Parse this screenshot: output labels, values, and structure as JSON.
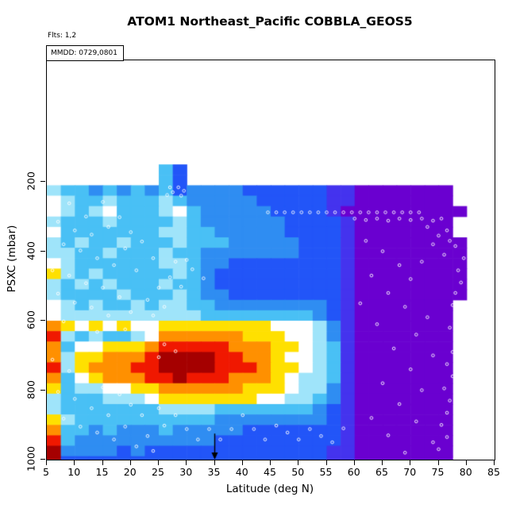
{
  "title": "ATOM1 Northeast_Pacific COBBLA_GEOS5",
  "subtitle": "Flts: 1,2",
  "legend_box": "MMDD: 0729,0801",
  "x_axis": {
    "label": "Latitude (deg N)",
    "ticks": [
      5,
      10,
      15,
      20,
      25,
      30,
      35,
      40,
      45,
      50,
      55,
      60,
      65,
      70,
      75,
      80,
      85
    ]
  },
  "y_axis": {
    "label": "PSXC (mbar)",
    "ticks": [
      200,
      400,
      600,
      800,
      1000
    ],
    "reversed": true
  },
  "chart_data": {
    "type": "heatmap",
    "title": "ATOM1 Northeast_Pacific COBBLA_GEOS5",
    "xlabel": "Latitude (deg N)",
    "ylabel": "PSXC (mbar)",
    "flights": "1,2",
    "dates_mmdd": [
      "0729",
      "0801"
    ],
    "x_range": [
      5,
      85
    ],
    "x_ticks": [
      5,
      10,
      15,
      20,
      25,
      30,
      35,
      40,
      45,
      50,
      55,
      60,
      65,
      70,
      75,
      80,
      85
    ],
    "y_ticks": [
      200,
      400,
      600,
      800,
      1000
    ],
    "y_reversed": true,
    "grid": {
      "lat_start": 5,
      "lat_step": 2.5,
      "pressure_start": 150,
      "pressure_step": 30,
      "note": "cell codes 0 (lowest) to A (highest), '.' = no data; values estimated from color",
      "code_values": {
        "0": 0.0,
        "1": 0.1,
        "2": 0.2,
        "3": 0.33,
        "4": 0.45,
        "5": 0.55,
        "6": 0.63,
        "7": 0.73,
        "8": 0.83,
        "9": 0.93,
        "A": 1.0
      },
      "palette": {
        "0": "#6a00d0",
        "1": "#4433ee",
        "2": "#2255f8",
        "3": "#2f8df2",
        "4": "#49c0f5",
        "5": "#9fe4fa",
        "6": "#ffffff",
        "7": "#ffe000",
        "8": "#ff9000",
        "9": "#f01800",
        "A": "#a50000"
      },
      "rows": [
        "........42....................",
        "........42....................",
        "54434343423333222222110000000.",
        "65445444543333322222110000000.",
        "654564445643333322221000000000",
        "54445444454333333222210000000.",
        "64444444554433333222210000000.",
        "545445444544433333222100000000",
        "554454445443333333222100000000",
        "654444445543322222222100000000",
        "754544444543222222222100000000",
        "545454445443222222222100000000",
        "544445444543322222222100000000",
        "65454454554433333333210000000.",
        "65555555555444444443210000000.",
        "87676766777777776665310000000.",
        "95454456888888777665310000000.",
        "84667778999998887765410000000.",
        "85778889AAAA99887665410000000.",
        "95788899AAAA99987765410000000.",
        "846788899A9998887655410000000.",
        "74556677888888777655310000000.",
        "54445556777777766554310000000.",
        "54444444555544444443210000000.",
        "75444444444433333333210000000.",
        "84434333433333222222210000000.",
        "94333333333322222222210000000.",
        "A3333232222222222222110000000.",
        "A2222222222222222222110000000."
      ]
    },
    "sample_points": [
      [
        27,
        216
      ],
      [
        28.5,
        216
      ],
      [
        29.5,
        226
      ],
      [
        27.5,
        230
      ],
      [
        26.5,
        238
      ],
      [
        29,
        240
      ],
      [
        44.5,
        288
      ],
      [
        46,
        288
      ],
      [
        47.5,
        288
      ],
      [
        49,
        288
      ],
      [
        50.5,
        288
      ],
      [
        52,
        288
      ],
      [
        53.5,
        288
      ],
      [
        55,
        288
      ],
      [
        56.5,
        288
      ],
      [
        58,
        288
      ],
      [
        59.5,
        288
      ],
      [
        61,
        288
      ],
      [
        62.5,
        288
      ],
      [
        64,
        288
      ],
      [
        65.5,
        288
      ],
      [
        67,
        288
      ],
      [
        68.5,
        288
      ],
      [
        70,
        288
      ],
      [
        71.5,
        288
      ],
      [
        60,
        306
      ],
      [
        62,
        310
      ],
      [
        64,
        306
      ],
      [
        66,
        312
      ],
      [
        68,
        306
      ],
      [
        70,
        310
      ],
      [
        72,
        306
      ],
      [
        74,
        312
      ],
      [
        75.5,
        306
      ],
      [
        73,
        330
      ],
      [
        75,
        355
      ],
      [
        76.5,
        340
      ],
      [
        74,
        380
      ],
      [
        76,
        410
      ],
      [
        77,
        370
      ],
      [
        78.5,
        320
      ],
      [
        79,
        350
      ],
      [
        78,
        385
      ],
      [
        79.5,
        420
      ],
      [
        78.5,
        455
      ],
      [
        79,
        490
      ],
      [
        78,
        520
      ],
      [
        77.5,
        555
      ],
      [
        78.5,
        585
      ],
      [
        77,
        620
      ],
      [
        78,
        655
      ],
      [
        77.5,
        690
      ],
      [
        76.5,
        725
      ],
      [
        77.5,
        760
      ],
      [
        76,
        795
      ],
      [
        77,
        830
      ],
      [
        76.5,
        865
      ],
      [
        75.5,
        900
      ],
      [
        76.5,
        935
      ],
      [
        75,
        970
      ],
      [
        62,
        370
      ],
      [
        65,
        400
      ],
      [
        68,
        440
      ],
      [
        63,
        470
      ],
      [
        70,
        480
      ],
      [
        72,
        430
      ],
      [
        66,
        520
      ],
      [
        61,
        550
      ],
      [
        69,
        560
      ],
      [
        73,
        590
      ],
      [
        64,
        610
      ],
      [
        71,
        640
      ],
      [
        67,
        680
      ],
      [
        74,
        700
      ],
      [
        70,
        740
      ],
      [
        65,
        780
      ],
      [
        72,
        800
      ],
      [
        68,
        840
      ],
      [
        63,
        880
      ],
      [
        71,
        890
      ],
      [
        66,
        930
      ],
      [
        74,
        950
      ],
      [
        69,
        980
      ],
      [
        6,
        255
      ],
      [
        9,
        262
      ],
      [
        12,
        300
      ],
      [
        7,
        315
      ],
      [
        15,
        258
      ],
      [
        18,
        302
      ],
      [
        10,
        340
      ],
      [
        13,
        352
      ],
      [
        16,
        330
      ],
      [
        20,
        345
      ],
      [
        8,
        380
      ],
      [
        11,
        398
      ],
      [
        14,
        420
      ],
      [
        19,
        392
      ],
      [
        22,
        372
      ],
      [
        17,
        440
      ],
      [
        6,
        455
      ],
      [
        9,
        470
      ],
      [
        12,
        492
      ],
      [
        21,
        455
      ],
      [
        24,
        420
      ],
      [
        7,
        522
      ],
      [
        15,
        505
      ],
      [
        18,
        532
      ],
      [
        10,
        548
      ],
      [
        13,
        562
      ],
      [
        23,
        540
      ],
      [
        25,
        505
      ],
      [
        16,
        585
      ],
      [
        20,
        575
      ],
      [
        8,
        602
      ],
      [
        11,
        618
      ],
      [
        24,
        585
      ],
      [
        14,
        632
      ],
      [
        19,
        625
      ],
      [
        26,
        560
      ],
      [
        28,
        430
      ],
      [
        30,
        425
      ],
      [
        27,
        475
      ],
      [
        31,
        452
      ],
      [
        29,
        502
      ],
      [
        33,
        478
      ],
      [
        26,
        668
      ],
      [
        28,
        688
      ],
      [
        25,
        705
      ],
      [
        6,
        712
      ],
      [
        9,
        745
      ],
      [
        12,
        772
      ],
      [
        7,
        805
      ],
      [
        15,
        792
      ],
      [
        10,
        825
      ],
      [
        13,
        852
      ],
      [
        18,
        812
      ],
      [
        16,
        872
      ],
      [
        8,
        882
      ],
      [
        11,
        905
      ],
      [
        20,
        842
      ],
      [
        22,
        872
      ],
      [
        14,
        922
      ],
      [
        17,
        942
      ],
      [
        25,
        852
      ],
      [
        19,
        905
      ],
      [
        23,
        932
      ],
      [
        21,
        962
      ],
      [
        26,
        902
      ],
      [
        28,
        872
      ],
      [
        24,
        975
      ],
      [
        30,
        912
      ],
      [
        32,
        942
      ],
      [
        34,
        912
      ],
      [
        36,
        942
      ],
      [
        38,
        912
      ],
      [
        40,
        872
      ],
      [
        42,
        912
      ],
      [
        44,
        942
      ],
      [
        46,
        902
      ],
      [
        48,
        922
      ],
      [
        50,
        942
      ],
      [
        52,
        912
      ],
      [
        54,
        932
      ],
      [
        56,
        950
      ],
      [
        58,
        910
      ]
    ],
    "arrow_marker": {
      "lat": 35,
      "pressure_tip": 1010,
      "pressure_tail": 925,
      "color": "#000000"
    }
  }
}
